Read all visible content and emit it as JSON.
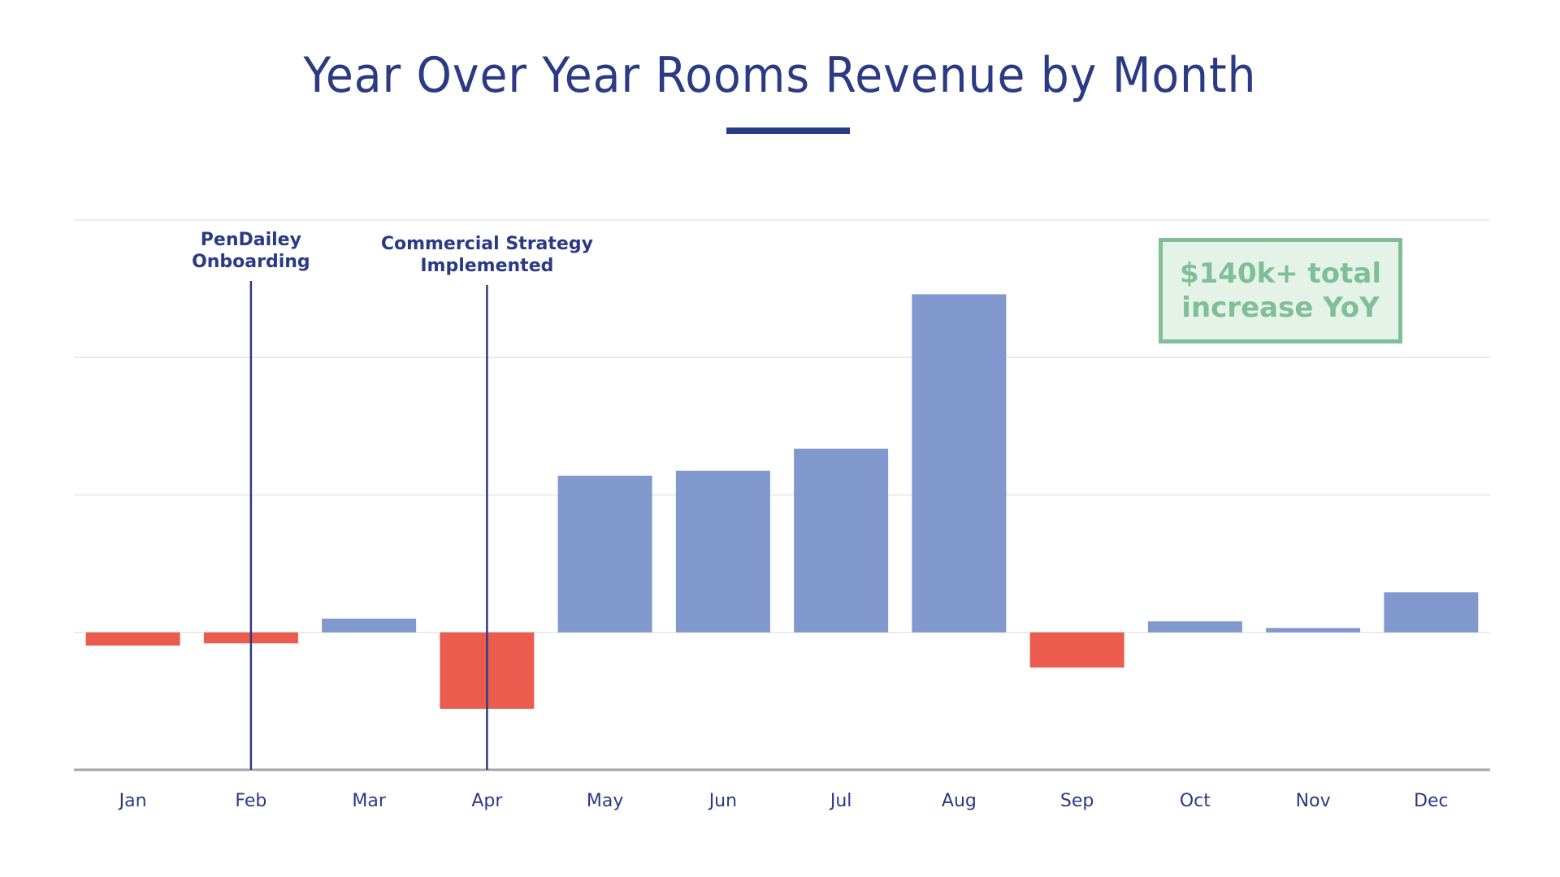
{
  "title": "Year Over Year Rooms Revenue by Month",
  "colors": {
    "title": "#2b3a84",
    "positive": "#8198cd",
    "negative": "#eb5c4e",
    "annotation_line": "#2b3a84",
    "gridline": "#e6e6e6",
    "baseline": "#a6a6a6",
    "kpi": "#7fbf98",
    "kpi_bg": "#e4f2e8"
  },
  "kpi_box": {
    "line1": "$140k+ total",
    "line2": "increase YoY"
  },
  "chart_data": {
    "type": "bar",
    "title": "Year Over Year Rooms Revenue by Month",
    "xlabel": "",
    "ylabel": "",
    "units": "USD thousands (estimated, YoY change)",
    "categories": [
      "Jan",
      "Feb",
      "Mar",
      "Apr",
      "May",
      "Jun",
      "Jul",
      "Aug",
      "Sep",
      "Oct",
      "Nov",
      "Dec"
    ],
    "values": [
      -2.4,
      -2.0,
      2.5,
      -13.9,
      28.5,
      29.4,
      33.4,
      61.5,
      -6.4,
      2.0,
      0.8,
      7.3
    ],
    "ylim": [
      -25,
      75
    ],
    "yticks": [
      -25,
      0,
      25,
      50,
      75
    ],
    "ytick_labels_visible": false,
    "grid": true,
    "legend": "none",
    "annotations": [
      {
        "category": "Feb",
        "text_lines": [
          "PenDailey",
          "Onboarding"
        ]
      },
      {
        "category": "Apr",
        "text_lines": [
          "Commercial Strategy",
          "Implemented"
        ]
      }
    ],
    "callout": "$140k+ total increase YoY"
  }
}
